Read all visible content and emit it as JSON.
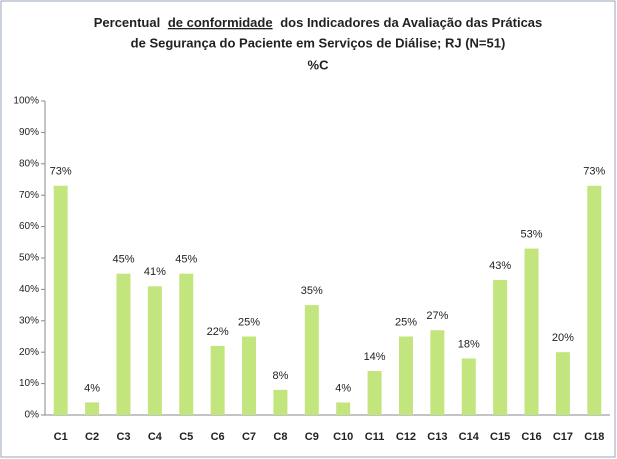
{
  "chart_data": {
    "type": "bar",
    "title": {
      "line1": [
        "Percentual",
        "de conformidade",
        "dos Indicadores da Avaliação das Práticas"
      ],
      "line2": "de Segurança do Paciente em Serviços de Diálise; RJ (N=51)"
    },
    "subtitle": "%C",
    "categories": [
      "C1",
      "C2",
      "C3",
      "C4",
      "C5",
      "C6",
      "C7",
      "C8",
      "C9",
      "C10",
      "C11",
      "C12",
      "C13",
      "C14",
      "C15",
      "C16",
      "C17",
      "C18"
    ],
    "values": [
      73,
      4,
      45,
      41,
      45,
      22,
      25,
      8,
      35,
      4,
      14,
      25,
      27,
      18,
      43,
      53,
      20,
      73
    ],
    "value_labels": [
      "73%",
      "4%",
      "45%",
      "41%",
      "45%",
      "22%",
      "25%",
      "8%",
      "35%",
      "4%",
      "14%",
      "25%",
      "27%",
      "18%",
      "43%",
      "53%",
      "20%",
      "73%"
    ],
    "color": "#c3e57d",
    "ylim": [
      0,
      100
    ],
    "yticks": [
      {
        "value": 0,
        "label": "0%"
      },
      {
        "value": 10,
        "label": "10%"
      },
      {
        "value": 20,
        "label": "20%"
      },
      {
        "value": 30,
        "label": "30%"
      },
      {
        "value": 40,
        "label": "40%"
      },
      {
        "value": 50,
        "label": "50%"
      },
      {
        "value": 60,
        "label": "60%"
      },
      {
        "value": 70,
        "label": "70%"
      },
      {
        "value": 80,
        "label": "80%"
      },
      {
        "value": 90,
        "label": "90%"
      },
      {
        "value": 100,
        "label": "100%"
      }
    ],
    "grid": false
  }
}
